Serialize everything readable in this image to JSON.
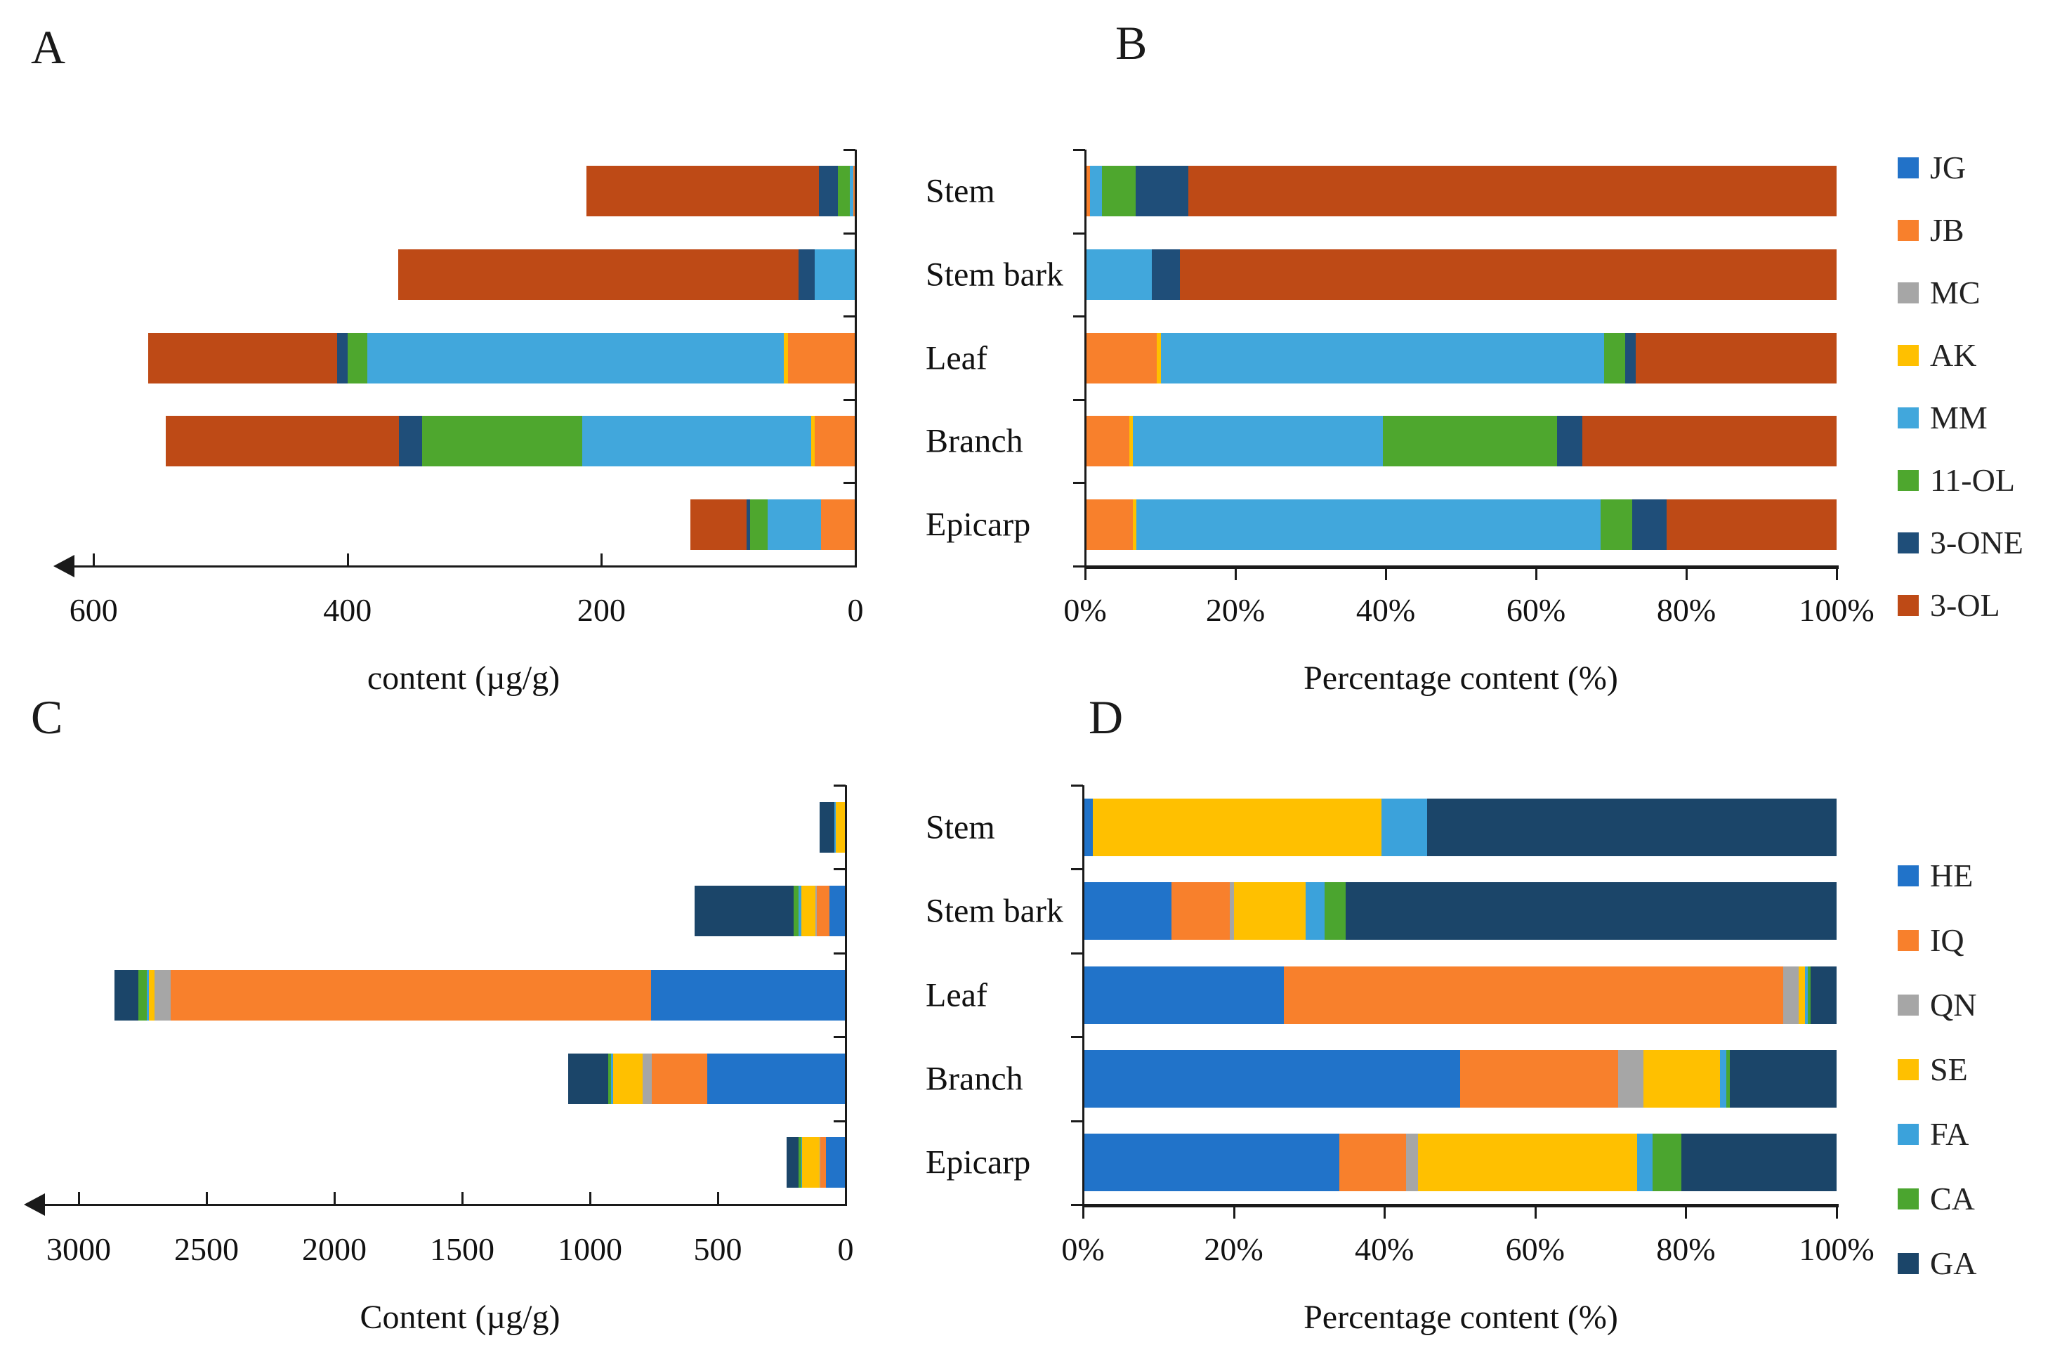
{
  "figure": {
    "panel_a_label": "A",
    "panel_b_label": "B",
    "panel_c_label": "C",
    "panel_d_label": "D"
  },
  "chart_data": [
    {
      "id": "A",
      "type": "bar",
      "orientation": "horizontal",
      "stacked": true,
      "value_axis_reversed": true,
      "title": "A",
      "xlabel": "content (µg/g)",
      "xlim": [
        0,
        600
      ],
      "xticks": [
        {
          "value": 600,
          "label": "600"
        },
        {
          "value": 400,
          "label": "400"
        },
        {
          "value": 200,
          "label": "200"
        },
        {
          "value": 0,
          "label": "0"
        }
      ],
      "categories": [
        "Stem",
        "Stem bark",
        "Leaf",
        "Branch",
        "Epicarp"
      ],
      "series": [
        {
          "name": "JG",
          "color": "#2272C8",
          "values": [
            0,
            0,
            0,
            0,
            0
          ]
        },
        {
          "name": "JB",
          "color": "#F8802C",
          "values": [
            1.5,
            0,
            53,
            32,
            27
          ]
        },
        {
          "name": "MC",
          "color": "#A6A6A6",
          "values": [
            0,
            0,
            0,
            0,
            0
          ]
        },
        {
          "name": "AK",
          "color": "#FFC000",
          "values": [
            0,
            0,
            3.5,
            3,
            0
          ]
        },
        {
          "name": "MM",
          "color": "#41A7DC",
          "values": [
            3,
            32,
            328,
            180,
            42
          ]
        },
        {
          "name": "11-OL",
          "color": "#4EA72E",
          "values": [
            9.5,
            0,
            15.5,
            126,
            14
          ]
        },
        {
          "name": "3-ONE",
          "color": "#1F4E79",
          "values": [
            15,
            13,
            8,
            18.5,
            3
          ]
        },
        {
          "name": "3-OL",
          "color": "#BE4A16",
          "values": [
            183,
            315,
            149,
            183.5,
            44
          ]
        }
      ]
    },
    {
      "id": "B",
      "type": "bar",
      "orientation": "horizontal",
      "stacked": true,
      "normalized_percent": true,
      "title": "B",
      "xlabel": "Percentage content (%)",
      "xlim": [
        0,
        100
      ],
      "xticks": [
        {
          "value": 0,
          "label": "0%"
        },
        {
          "value": 20,
          "label": "20%"
        },
        {
          "value": 40,
          "label": "40%"
        },
        {
          "value": 60,
          "label": "60%"
        },
        {
          "value": 80,
          "label": "80%"
        },
        {
          "value": 100,
          "label": "100%"
        }
      ],
      "categories": [
        "Stem",
        "Stem bark",
        "Leaf",
        "Branch",
        "Epicarp"
      ],
      "series": [
        {
          "name": "JG",
          "color": "#2272C8",
          "values": [
            0,
            0,
            0,
            0,
            0
          ]
        },
        {
          "name": "JB",
          "color": "#F8802C",
          "values": [
            0.7,
            0,
            9.5,
            5.9,
            6.4
          ]
        },
        {
          "name": "MC",
          "color": "#A6A6A6",
          "values": [
            0,
            0,
            0,
            0,
            0
          ]
        },
        {
          "name": "AK",
          "color": "#FFC000",
          "values": [
            0,
            0,
            0.6,
            0.5,
            0.4
          ]
        },
        {
          "name": "MM",
          "color": "#41A7DC",
          "values": [
            1.5,
            8.9,
            59.0,
            33.2,
            61.8
          ]
        },
        {
          "name": "11-OL",
          "color": "#4EA72E",
          "values": [
            4.5,
            0,
            2.8,
            23.2,
            4.2
          ]
        },
        {
          "name": "3-ONE",
          "color": "#1F4E79",
          "values": [
            7.0,
            3.7,
            1.4,
            3.4,
            4.6
          ]
        },
        {
          "name": "3-OL",
          "color": "#BE4A16",
          "values": [
            86.3,
            87.4,
            26.7,
            33.8,
            22.6
          ]
        }
      ],
      "legend": [
        {
          "label": "JG",
          "color": "#2272C8"
        },
        {
          "label": "JB",
          "color": "#F8802C"
        },
        {
          "label": "MC",
          "color": "#A6A6A6"
        },
        {
          "label": "AK",
          "color": "#FFC000"
        },
        {
          "label": "MM",
          "color": "#41A7DC"
        },
        {
          "label": "11-OL",
          "color": "#4EA72E"
        },
        {
          "label": "3-ONE",
          "color": "#1F4E79"
        },
        {
          "label": "3-OL",
          "color": "#BE4A16"
        }
      ]
    },
    {
      "id": "C",
      "type": "bar",
      "orientation": "horizontal",
      "stacked": true,
      "value_axis_reversed": true,
      "title": "C",
      "xlabel": "Content (µg/g)",
      "xlim": [
        0,
        3000
      ],
      "xticks": [
        {
          "value": 3000,
          "label": "3000"
        },
        {
          "value": 2500,
          "label": "2500"
        },
        {
          "value": 2000,
          "label": "2000"
        },
        {
          "value": 1500,
          "label": "1500"
        },
        {
          "value": 1000,
          "label": "1000"
        },
        {
          "value": 500,
          "label": "500"
        },
        {
          "value": 0,
          "label": "0"
        }
      ],
      "categories": [
        "Stem",
        "Stem bark",
        "Leaf",
        "Branch",
        "Epicarp"
      ],
      "series": [
        {
          "name": "HE",
          "color": "#2173C9",
          "values": [
            1.5,
            62,
            760,
            542,
            78
          ]
        },
        {
          "name": "IQ",
          "color": "#F8802C",
          "values": [
            0,
            50,
            1880,
            215,
            21
          ]
        },
        {
          "name": "QN",
          "color": "#A6A6A6",
          "values": [
            0,
            7,
            63,
            38,
            4
          ]
        },
        {
          "name": "SE",
          "color": "#FFC000",
          "values": [
            36,
            54,
            22,
            114,
            66
          ]
        },
        {
          "name": "FA",
          "color": "#3BA2DB",
          "values": [
            6,
            12,
            10,
            8,
            5
          ]
        },
        {
          "name": "CA",
          "color": "#4BA52F",
          "values": [
            0,
            18,
            31,
            11,
            9
          ]
        },
        {
          "name": "GA",
          "color": "#1B4569",
          "values": [
            57,
            387,
            95,
            157,
            47
          ]
        }
      ]
    },
    {
      "id": "D",
      "type": "bar",
      "orientation": "horizontal",
      "stacked": true,
      "normalized_percent": true,
      "title": "D",
      "xlabel": "Percentage content (%)",
      "xlim": [
        0,
        100
      ],
      "xticks": [
        {
          "value": 0,
          "label": "0%"
        },
        {
          "value": 20,
          "label": "20%"
        },
        {
          "value": 40,
          "label": "40%"
        },
        {
          "value": 60,
          "label": "60%"
        },
        {
          "value": 80,
          "label": "80%"
        },
        {
          "value": 100,
          "label": "100%"
        }
      ],
      "categories": [
        "Stem",
        "Stem bark",
        "Leaf",
        "Branch",
        "Epicarp"
      ],
      "series": [
        {
          "name": "HE",
          "color": "#2173C9",
          "values": [
            1.3,
            11.7,
            26.7,
            50.0,
            34.0
          ]
        },
        {
          "name": "IQ",
          "color": "#F8802C",
          "values": [
            0,
            7.8,
            66.2,
            21.0,
            8.9
          ]
        },
        {
          "name": "QN",
          "color": "#A6A6A6",
          "values": [
            0,
            0.5,
            2.1,
            3.4,
            1.6
          ]
        },
        {
          "name": "SE",
          "color": "#FFC000",
          "values": [
            38.3,
            9.5,
            0.8,
            10.1,
            29.0
          ]
        },
        {
          "name": "FA",
          "color": "#3BA2DB",
          "values": [
            6.1,
            2.6,
            0.4,
            0.9,
            2.1
          ]
        },
        {
          "name": "CA",
          "color": "#4BA52F",
          "values": [
            0,
            2.8,
            0.4,
            0.4,
            3.8
          ]
        },
        {
          "name": "GA",
          "color": "#1B4569",
          "values": [
            54.3,
            65.1,
            3.4,
            14.2,
            20.6
          ]
        }
      ],
      "legend": [
        {
          "label": "HE",
          "color": "#2173C9"
        },
        {
          "label": "IQ",
          "color": "#F8802C"
        },
        {
          "label": "QN",
          "color": "#A6A6A6"
        },
        {
          "label": "SE",
          "color": "#FFC000"
        },
        {
          "label": "FA",
          "color": "#3BA2DB"
        },
        {
          "label": "CA",
          "color": "#4BA52F"
        },
        {
          "label": "GA",
          "color": "#1B4569"
        }
      ]
    }
  ]
}
